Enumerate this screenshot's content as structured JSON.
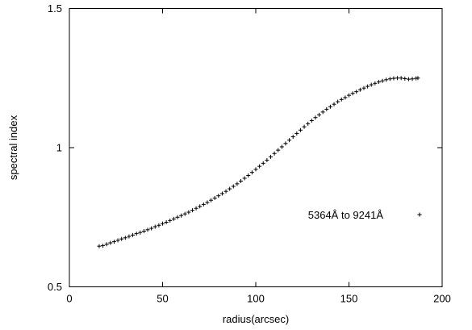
{
  "chart_data": {
    "type": "scatter",
    "title": "",
    "xlabel": "radius(arcsec)",
    "ylabel": "spectral index",
    "xlim": [
      0,
      200
    ],
    "ylim": [
      0.5,
      1.5
    ],
    "x_ticks": [
      0,
      50,
      100,
      150,
      200
    ],
    "x_tick_labels": [
      "0",
      "50",
      "100",
      "150",
      "200"
    ],
    "y_ticks": [
      0.5,
      1,
      1.5
    ],
    "y_tick_labels": [
      "0.5",
      "1",
      "1.5"
    ],
    "grid": false,
    "legend_position": "right",
    "point_color": "#000000",
    "marker": "plus",
    "series": [
      {
        "name": "5364Å to 9241Å",
        "points": [
          [
            16,
            0.646
          ],
          [
            18,
            0.648
          ],
          [
            20,
            0.653
          ],
          [
            22,
            0.658
          ],
          [
            24,
            0.662
          ],
          [
            26,
            0.667
          ],
          [
            28,
            0.672
          ],
          [
            30,
            0.676
          ],
          [
            32,
            0.681
          ],
          [
            34,
            0.686
          ],
          [
            36,
            0.691
          ],
          [
            38,
            0.695
          ],
          [
            40,
            0.7
          ],
          [
            42,
            0.705
          ],
          [
            44,
            0.71
          ],
          [
            46,
            0.716
          ],
          [
            48,
            0.721
          ],
          [
            50,
            0.727
          ],
          [
            52,
            0.732
          ],
          [
            54,
            0.738
          ],
          [
            56,
            0.744
          ],
          [
            58,
            0.75
          ],
          [
            60,
            0.756
          ],
          [
            62,
            0.762
          ],
          [
            64,
            0.768
          ],
          [
            66,
            0.775
          ],
          [
            68,
            0.782
          ],
          [
            70,
            0.789
          ],
          [
            72,
            0.796
          ],
          [
            74,
            0.803
          ],
          [
            76,
            0.811
          ],
          [
            78,
            0.819
          ],
          [
            80,
            0.827
          ],
          [
            82,
            0.835
          ],
          [
            84,
            0.843
          ],
          [
            86,
            0.852
          ],
          [
            88,
            0.861
          ],
          [
            90,
            0.87
          ],
          [
            92,
            0.88
          ],
          [
            94,
            0.89
          ],
          [
            96,
            0.9
          ],
          [
            98,
            0.911
          ],
          [
            100,
            0.922
          ],
          [
            102,
            0.933
          ],
          [
            104,
            0.944
          ],
          [
            106,
            0.955
          ],
          [
            108,
            0.967
          ],
          [
            110,
            0.979
          ],
          [
            112,
            0.991
          ],
          [
            114,
            1.003
          ],
          [
            116,
            1.015
          ],
          [
            118,
            1.027
          ],
          [
            120,
            1.039
          ],
          [
            122,
            1.051
          ],
          [
            124,
            1.063
          ],
          [
            126,
            1.075
          ],
          [
            128,
            1.086
          ],
          [
            130,
            1.097
          ],
          [
            132,
            1.108
          ],
          [
            134,
            1.118
          ],
          [
            136,
            1.128
          ],
          [
            138,
            1.138
          ],
          [
            140,
            1.147
          ],
          [
            142,
            1.156
          ],
          [
            144,
            1.165
          ],
          [
            146,
            1.173
          ],
          [
            148,
            1.18
          ],
          [
            150,
            1.188
          ],
          [
            152,
            1.195
          ],
          [
            154,
            1.201
          ],
          [
            156,
            1.208
          ],
          [
            158,
            1.214
          ],
          [
            160,
            1.22
          ],
          [
            162,
            1.226
          ],
          [
            164,
            1.231
          ],
          [
            166,
            1.236
          ],
          [
            168,
            1.24
          ],
          [
            170,
            1.244
          ],
          [
            172,
            1.247
          ],
          [
            174,
            1.249
          ],
          [
            176,
            1.25
          ],
          [
            178,
            1.25
          ],
          [
            180,
            1.248
          ],
          [
            182,
            1.246
          ],
          [
            184,
            1.247
          ],
          [
            186,
            1.249
          ],
          [
            187,
            1.25
          ]
        ]
      }
    ]
  }
}
